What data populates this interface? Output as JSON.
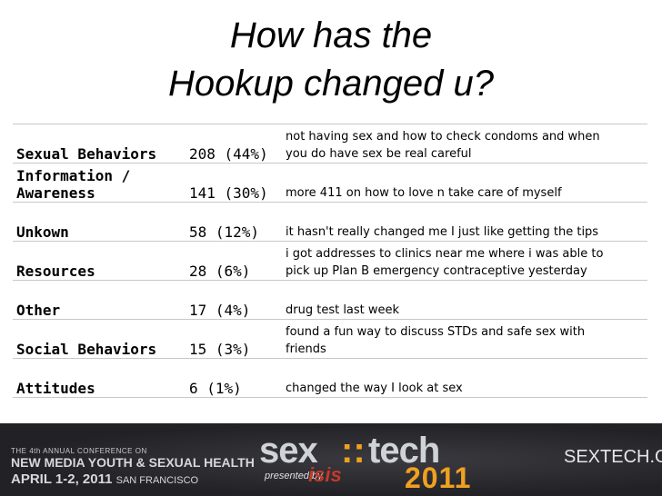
{
  "title": {
    "line1": "How has the",
    "line2": "Hookup changed u?"
  },
  "table": {
    "rows": [
      {
        "category": "Sexual Behaviors",
        "count": "208 (44%)",
        "example": [
          "not having sex and how to check condoms and when",
          "you do have sex be real careful"
        ]
      },
      {
        "category": [
          "Information /",
          "Awareness"
        ],
        "count": "141 (30%)",
        "example": [
          "more 411 on how to love n take care of myself"
        ]
      },
      {
        "category": "Unkown",
        "count": "58 (12%)",
        "example": [
          "it hasn't really changed me I just like getting the tips"
        ]
      },
      {
        "category": "Resources",
        "count": "28 (6%)",
        "example": [
          "i got addresses to clinics near me where i was able to",
          "pick up Plan B emergency contraceptive yesterday"
        ]
      },
      {
        "category": "Other",
        "count": "17 (4%)",
        "example": [
          "drug test last week"
        ]
      },
      {
        "category": "Social Behaviors",
        "count": "15 (3%)",
        "example": [
          "found a fun way to discuss STDs and safe sex with",
          "friends"
        ]
      },
      {
        "category": "Attitudes",
        "count": "6 (1%)",
        "example": [
          "changed the way I look at sex"
        ]
      }
    ]
  },
  "footer": {
    "conference_line1": "THE 4th ANNUAL CONFERENCE ON",
    "conference_line2": "NEW MEDIA YOUTH & SEXUAL HEALTH",
    "conference_date": "APRIL 1-2, 2011",
    "conference_city": "SAN FRANCISCO",
    "logo_sex": "sex",
    "logo_sep": "::",
    "logo_tech": "tech",
    "logo_presented": "presented by",
    "logo_isis": "isis",
    "logo_year": "2011",
    "site": "SEXTECH.ORG"
  }
}
